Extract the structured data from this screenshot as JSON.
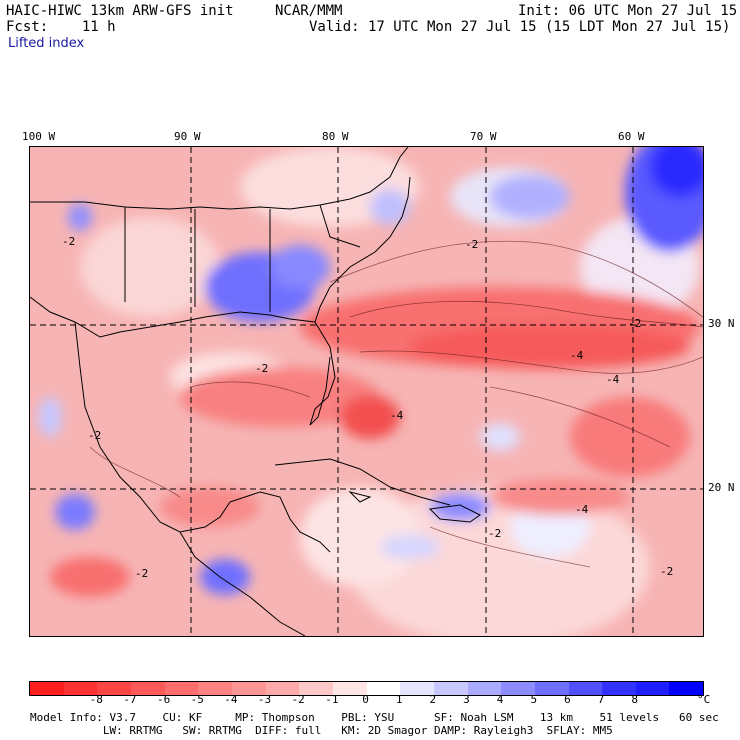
{
  "header": {
    "model_title": "HAIC-HIWC 13km ARW-GFS init",
    "org": "NCAR/MMM",
    "init": "Init: 06 UTC Mon 27 Jul 15",
    "fcst": "Fcst:    11 h",
    "valid": "Valid: 17 UTC Mon 27 Jul 15 (15 LDT Mon 27 Jul 15)",
    "field": "Lifted index"
  },
  "map": {
    "lon_labels": [
      "100 W",
      "90 W",
      "80 W",
      "70 W",
      "60 W"
    ],
    "lat_labels": [
      "30 N",
      "20 N"
    ],
    "contour_labels": [
      "-2",
      "-2",
      "-2",
      "-2",
      "-2",
      "-4",
      "-4",
      "-4",
      "-2",
      "-4",
      "-2",
      "-2"
    ]
  },
  "colorbar": {
    "ticks": [
      "-8",
      "-7",
      "-6",
      "-5",
      "-4",
      "-3",
      "-2",
      "-1",
      "0",
      "1",
      "2",
      "3",
      "4",
      "5",
      "6",
      "7",
      "8"
    ],
    "unit": "°C",
    "colors": [
      "#ff1e1e",
      "#ff3232",
      "#ff4646",
      "#ff5a5a",
      "#ff6e6e",
      "#ff8282",
      "#ff9696",
      "#ffaaaa",
      "#ffc8c8",
      "#ffe6e6",
      "#ffffff",
      "#e6e6ff",
      "#c8c8ff",
      "#aaaaff",
      "#8c8cff",
      "#6e6eff",
      "#5050ff",
      "#3232ff",
      "#1e1eff",
      "#0000ff"
    ]
  },
  "footer": {
    "line1": "Model Info: V3.7    CU: KF     MP: Thompson    PBL: YSU      SF: Noah LSM    13 km    51 levels   60 sec",
    "line2": "           LW: RRTMG   SW: RRTMG  DIFF: full   KM: 2D Smagor DAMP: Rayleigh3  SFLAY: MM5"
  }
}
